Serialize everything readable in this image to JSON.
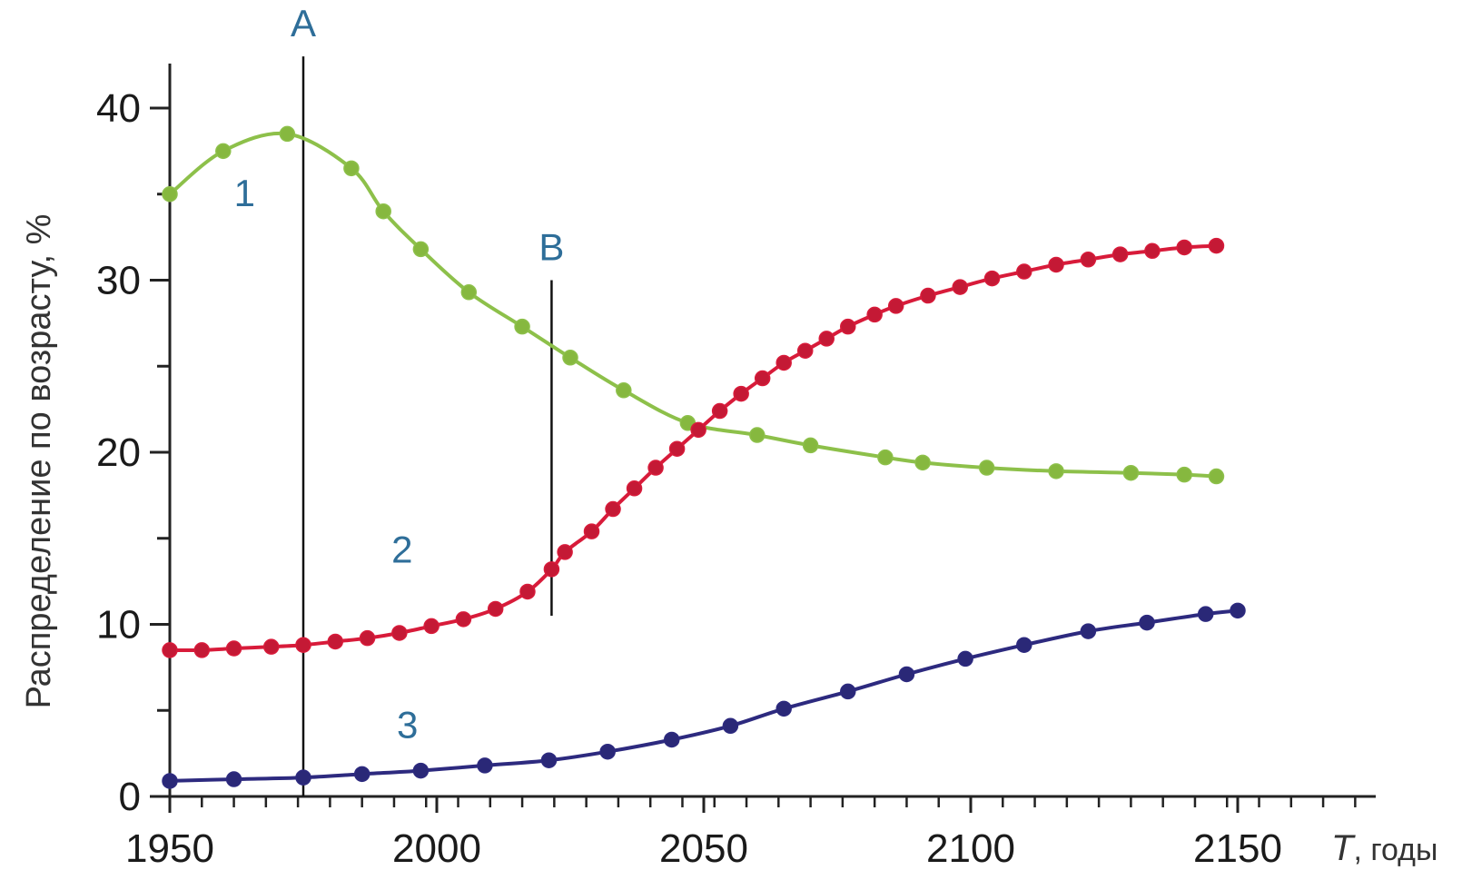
{
  "chart_data": {
    "type": "line",
    "title": "",
    "ylabel": "Распределение по возрасту, %",
    "xlabel_symbol": "T",
    "xlabel_unit": ", годы",
    "xlim": [
      1950,
      2175
    ],
    "ylim": [
      0,
      40
    ],
    "x_ticks": [
      1950,
      2000,
      2050,
      2100,
      2150
    ],
    "x_minor_step": 6,
    "y_ticks": [
      0,
      10,
      20,
      30,
      40
    ],
    "y_minor_ticks": [
      5,
      15,
      25,
      35
    ],
    "grid": false,
    "legend": "none",
    "vlines": [
      {
        "label": "A",
        "x": 1975,
        "y_top": 43
      },
      {
        "label": "B",
        "x": 2021.5,
        "y_top": 30,
        "y_bottom": 10.5
      }
    ],
    "series": [
      {
        "label": "1",
        "color": "#8dc04a",
        "marker_color": "#86b83f",
        "label_pos": [
          1964,
          34.3
        ],
        "x": [
          1950,
          1960,
          1972,
          1984,
          1990,
          1997,
          2006,
          2016,
          2025,
          2035,
          2047,
          2060,
          2070,
          2084,
          2091,
          2103,
          2116,
          2130,
          2140,
          2146
        ],
        "values": [
          35.0,
          37.5,
          38.5,
          36.5,
          34.0,
          31.8,
          29.3,
          27.3,
          25.5,
          23.6,
          21.7,
          21.0,
          20.4,
          19.7,
          19.4,
          19.1,
          18.9,
          18.8,
          18.7,
          18.6
        ]
      },
      {
        "label": "2",
        "color": "#d81b3a",
        "marker_color": "#c41935",
        "label_pos": [
          1993.5,
          13.6
        ],
        "x": [
          1950,
          1956,
          1962,
          1969,
          1975,
          1981,
          1987,
          1993,
          1999,
          2005,
          2011,
          2017,
          2021.5,
          2024,
          2029,
          2033,
          2037,
          2041,
          2045,
          2049,
          2053,
          2057,
          2061,
          2065,
          2069,
          2073,
          2077,
          2082,
          2086,
          2092,
          2098,
          2104,
          2110,
          2116,
          2122,
          2128,
          2134,
          2140,
          2146
        ],
        "values": [
          8.5,
          8.5,
          8.6,
          8.7,
          8.8,
          9.0,
          9.2,
          9.5,
          9.9,
          10.3,
          10.9,
          11.9,
          13.2,
          14.2,
          15.4,
          16.7,
          17.9,
          19.1,
          20.2,
          21.3,
          22.4,
          23.4,
          24.3,
          25.2,
          25.9,
          26.6,
          27.3,
          28.0,
          28.5,
          29.1,
          29.6,
          30.1,
          30.5,
          30.9,
          31.2,
          31.5,
          31.7,
          31.9,
          32.0
        ]
      },
      {
        "label": "3",
        "color": "#2d2a7f",
        "marker_color": "#2a2877",
        "label_pos": [
          1994.5,
          3.4
        ],
        "x": [
          1950,
          1962,
          1975,
          1986,
          1997,
          2009,
          2021,
          2032,
          2044,
          2055,
          2065,
          2077,
          2088,
          2099,
          2110,
          2122,
          2133,
          2144,
          2150
        ],
        "values": [
          0.9,
          1.0,
          1.1,
          1.3,
          1.5,
          1.8,
          2.1,
          2.6,
          3.3,
          4.1,
          5.1,
          6.1,
          7.1,
          8.0,
          8.8,
          9.6,
          10.1,
          10.6,
          10.8
        ]
      }
    ]
  }
}
